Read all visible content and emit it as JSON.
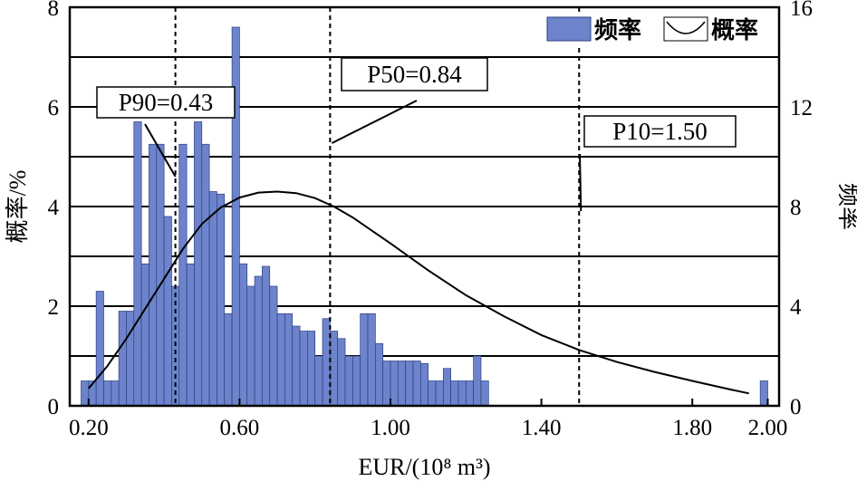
{
  "chart_data": {
    "type": "bar",
    "x_axis": {
      "label": "EUR/(10⁸ m³)",
      "range": [
        0.15,
        2.03
      ],
      "ticks": [
        0.2,
        0.6,
        1.0,
        1.4,
        1.8,
        2.0
      ],
      "tick_labels": [
        "0.20",
        "0.60",
        "1.00",
        "1.40",
        "1.80",
        "2.00"
      ]
    },
    "y_left": {
      "label": "概率/%",
      "range": [
        0,
        8
      ],
      "ticks": [
        0,
        2,
        4,
        6,
        8
      ],
      "tick_labels": [
        "0",
        "2",
        "4",
        "6",
        "8"
      ]
    },
    "y_right": {
      "label": "频率",
      "range": [
        0,
        16
      ],
      "ticks": [
        0,
        4,
        8,
        12,
        16
      ],
      "tick_labels": [
        "0",
        "4",
        "8",
        "12",
        "16"
      ]
    },
    "grid": "horizontal, every 1 unit of left axis",
    "legend": {
      "position": "top-right",
      "entries": [
        "频率",
        "概率"
      ]
    },
    "bar_color": "#6d84cc",
    "bar_stroke": "#2b3f7f",
    "series": [
      {
        "name": "频率",
        "axis": "right",
        "bin_width": 0.02,
        "x": [
          0.19,
          0.21,
          0.23,
          0.25,
          0.27,
          0.29,
          0.31,
          0.33,
          0.35,
          0.37,
          0.39,
          0.41,
          0.43,
          0.45,
          0.47,
          0.49,
          0.51,
          0.53,
          0.55,
          0.57,
          0.59,
          0.61,
          0.63,
          0.65,
          0.67,
          0.69,
          0.71,
          0.73,
          0.75,
          0.77,
          0.79,
          0.81,
          0.83,
          0.85,
          0.87,
          0.89,
          0.91,
          0.93,
          0.95,
          0.97,
          0.99,
          1.01,
          1.03,
          1.05,
          1.07,
          1.09,
          1.11,
          1.13,
          1.15,
          1.17,
          1.19,
          1.21,
          1.23,
          1.25,
          1.27,
          1.29,
          1.31,
          1.33,
          1.35,
          1.37,
          1.39,
          1.41,
          1.43,
          1.45,
          1.47,
          1.49,
          1.51,
          1.53,
          1.55,
          1.57,
          1.59,
          1.61,
          1.63,
          1.65,
          1.67,
          1.69,
          1.71,
          1.73,
          1.75,
          1.77,
          1.79,
          1.81,
          1.83,
          1.85,
          1.87,
          1.89,
          1.91,
          1.93,
          1.95,
          1.97,
          1.99
        ],
        "values": [
          1,
          1,
          4.6,
          1,
          1,
          3.8,
          3.8,
          11.4,
          5.7,
          10.5,
          10.5,
          7.6,
          4.8,
          10.5,
          5.7,
          11.4,
          10.5,
          8.6,
          8.5,
          3.7,
          15.2,
          5.7,
          4.8,
          5.2,
          5.6,
          4.8,
          3.7,
          3.7,
          3.2,
          3,
          3,
          2,
          3.5,
          3,
          2.7,
          2,
          2,
          3.7,
          3.7,
          2.5,
          1.8,
          1.8,
          1.8,
          1.8,
          1.8,
          1.7,
          1,
          1,
          1.5,
          1,
          1,
          1,
          2,
          1,
          0,
          0,
          0,
          0,
          0,
          0,
          0,
          0,
          0,
          0,
          0,
          0,
          0,
          0,
          0,
          0,
          0,
          0,
          0,
          0,
          0,
          0,
          0,
          0,
          0,
          0,
          0,
          0,
          0,
          0,
          0,
          0,
          0,
          0,
          0,
          0,
          1
        ]
      },
      {
        "name": "概率",
        "axis": "left",
        "x": [
          0.2,
          0.25,
          0.3,
          0.35,
          0.4,
          0.45,
          0.5,
          0.55,
          0.6,
          0.65,
          0.7,
          0.75,
          0.8,
          0.85,
          0.9,
          0.95,
          1.0,
          1.1,
          1.2,
          1.3,
          1.4,
          1.5,
          1.6,
          1.7,
          1.8,
          1.9,
          1.95
        ],
        "values": [
          0.35,
          0.8,
          1.35,
          1.95,
          2.55,
          3.15,
          3.65,
          3.98,
          4.18,
          4.28,
          4.3,
          4.27,
          4.17,
          4.0,
          3.78,
          3.52,
          3.26,
          2.72,
          2.22,
          1.8,
          1.42,
          1.12,
          0.88,
          0.68,
          0.5,
          0.33,
          0.25
        ]
      }
    ],
    "annotations": [
      {
        "text": "P90=0.43",
        "x": 0.43
      },
      {
        "text": "P50=0.84",
        "x": 0.84
      },
      {
        "text": "P10=1.50",
        "x": 1.5
      }
    ]
  }
}
